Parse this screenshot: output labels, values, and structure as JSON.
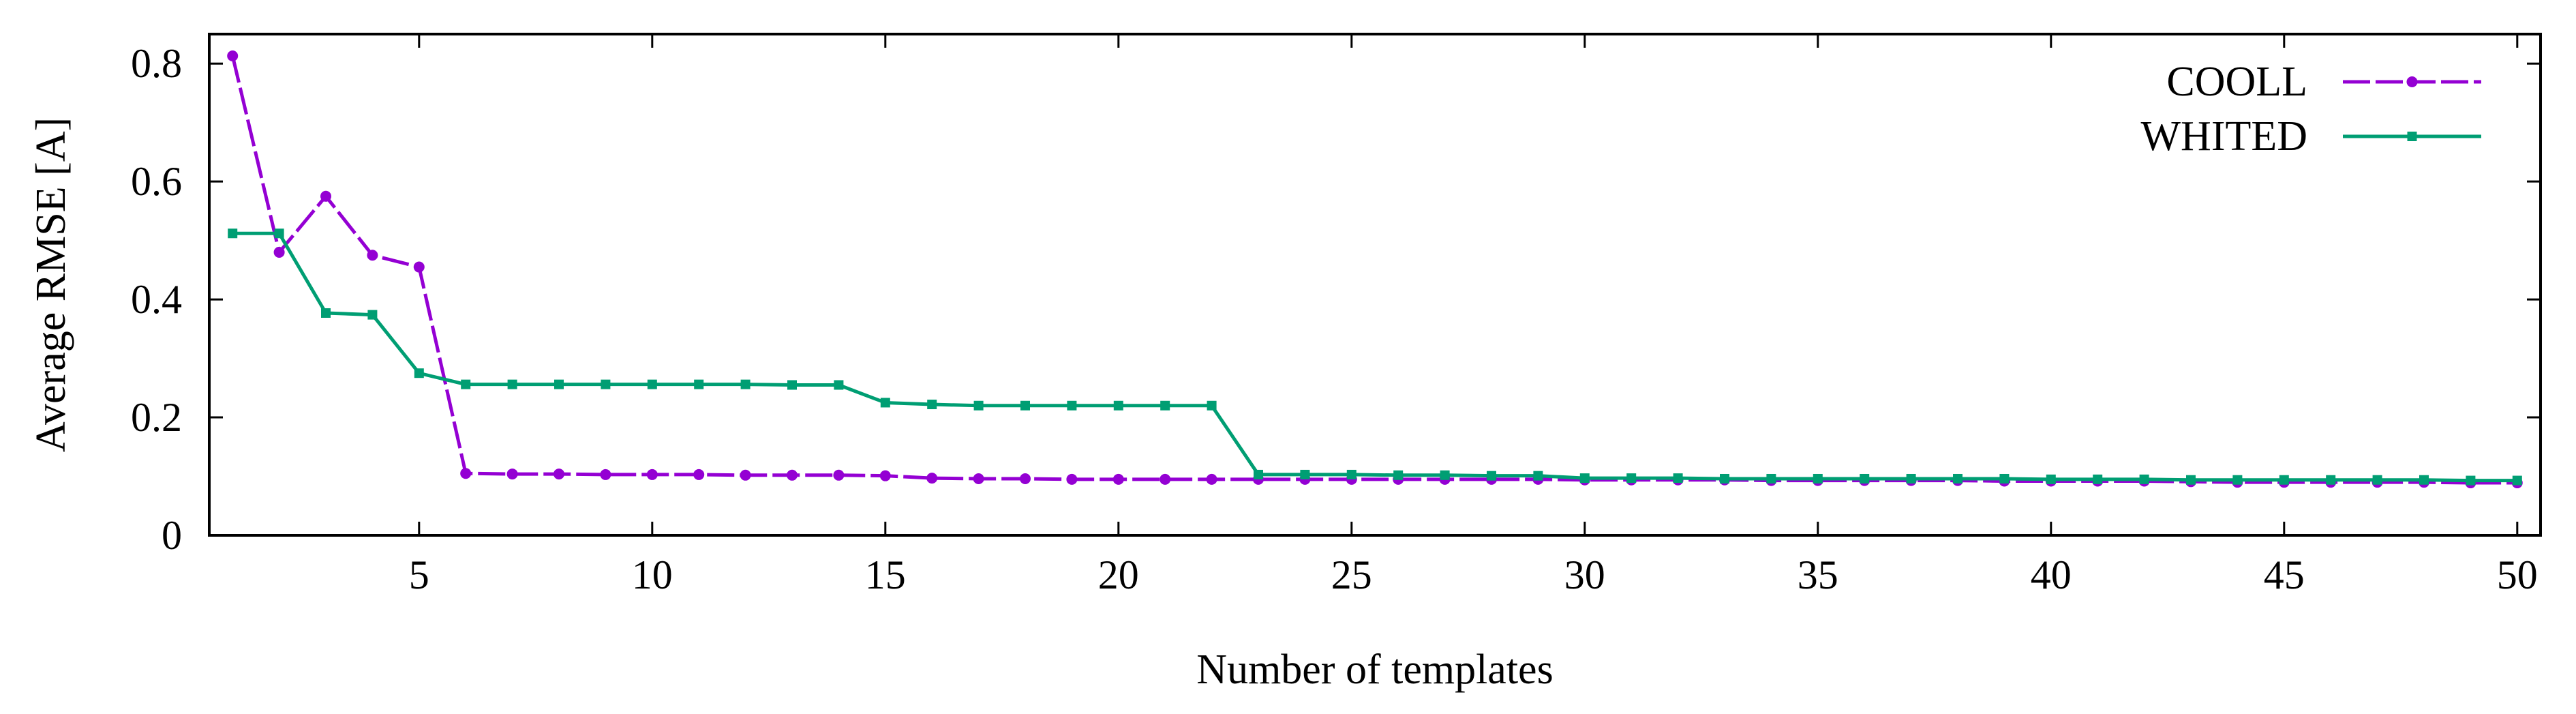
{
  "chart_data": {
    "type": "line",
    "title": "",
    "xlabel": "Number of templates",
    "ylabel": "Average RMSE [A]",
    "xlim": [
      0.5,
      50.5
    ],
    "ylim": [
      0,
      0.85
    ],
    "x_ticks": [
      5,
      10,
      15,
      20,
      25,
      30,
      35,
      40,
      45,
      50
    ],
    "x_tick_labels": [
      "5",
      "10",
      "15",
      "20",
      "25",
      "30",
      "35",
      "40",
      "45",
      "50"
    ],
    "y_ticks": [
      0,
      0.2,
      0.4,
      0.6,
      0.8
    ],
    "y_tick_labels": [
      "0",
      "0.2",
      "0.4",
      "0.6",
      "0.8"
    ],
    "grid": false,
    "legend_position": "top-right",
    "x": [
      1,
      2,
      3,
      4,
      5,
      6,
      7,
      8,
      9,
      10,
      11,
      12,
      13,
      14,
      15,
      16,
      17,
      18,
      19,
      20,
      21,
      22,
      23,
      24,
      25,
      26,
      27,
      28,
      29,
      30,
      31,
      32,
      33,
      34,
      35,
      36,
      37,
      38,
      39,
      40,
      41,
      42,
      43,
      44,
      45,
      46,
      47,
      48,
      49,
      50
    ],
    "series": [
      {
        "name": "COOLL",
        "color": "#9400d3",
        "marker": "circle",
        "dashed": true,
        "values": [
          0.813,
          0.48,
          0.575,
          0.475,
          0.455,
          0.105,
          0.104,
          0.104,
          0.103,
          0.103,
          0.103,
          0.102,
          0.102,
          0.102,
          0.101,
          0.097,
          0.096,
          0.096,
          0.095,
          0.095,
          0.095,
          0.095,
          0.095,
          0.095,
          0.095,
          0.095,
          0.095,
          0.095,
          0.095,
          0.094,
          0.094,
          0.094,
          0.094,
          0.093,
          0.093,
          0.093,
          0.093,
          0.093,
          0.092,
          0.092,
          0.092,
          0.092,
          0.091,
          0.09,
          0.09,
          0.09,
          0.09,
          0.09,
          0.089,
          0.089
        ]
      },
      {
        "name": "WHITED",
        "color": "#009e73",
        "marker": "square",
        "dashed": false,
        "values": [
          0.512,
          0.512,
          0.377,
          0.374,
          0.275,
          0.256,
          0.256,
          0.256,
          0.256,
          0.256,
          0.256,
          0.256,
          0.255,
          0.255,
          0.225,
          0.222,
          0.22,
          0.22,
          0.22,
          0.22,
          0.22,
          0.22,
          0.103,
          0.103,
          0.103,
          0.102,
          0.102,
          0.101,
          0.101,
          0.097,
          0.097,
          0.097,
          0.096,
          0.096,
          0.096,
          0.096,
          0.096,
          0.096,
          0.096,
          0.095,
          0.095,
          0.095,
          0.094,
          0.094,
          0.094,
          0.094,
          0.094,
          0.094,
          0.093,
          0.093
        ]
      }
    ]
  }
}
